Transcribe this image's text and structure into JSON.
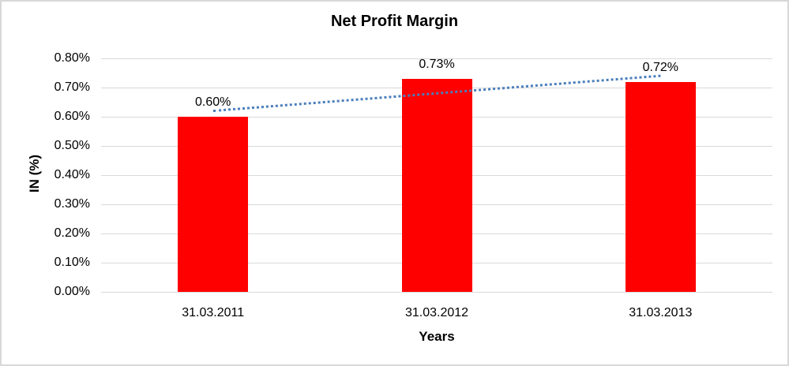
{
  "chart_data": {
    "type": "bar",
    "title": "Net Profit Margin",
    "xlabel": "Years",
    "ylabel": "IN (%)",
    "categories": [
      "31.03.2011",
      "31.03.2012",
      "31.03.2013"
    ],
    "values": [
      0.6,
      0.73,
      0.72
    ],
    "data_labels": [
      "0.60%",
      "0.73%",
      "0.72%"
    ],
    "y_ticks": [
      "0.80%",
      "0.70%",
      "0.60%",
      "0.50%",
      "0.40%",
      "0.30%",
      "0.20%",
      "0.10%",
      "0.00%"
    ],
    "ylim": [
      0,
      0.8
    ],
    "unit": "percent",
    "grid": "horizontal",
    "legend": "none",
    "bar_color": "#FF0000",
    "gridline_color": "#D9D9D9",
    "text_color": "#000000",
    "frame_border_color": "#D8D8D8",
    "trendline": {
      "type": "linear",
      "style": "dotted",
      "color": "#4A7EBB",
      "start_value": 0.623,
      "end_value": 0.743
    }
  }
}
